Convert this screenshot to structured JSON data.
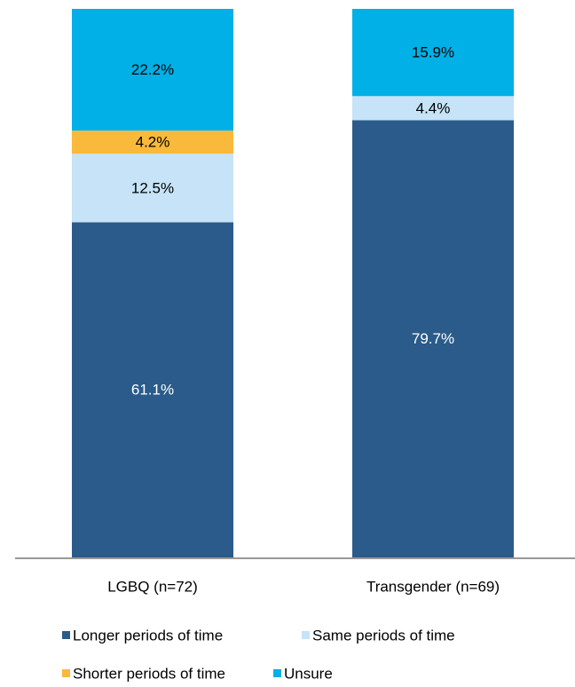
{
  "chart_data": {
    "type": "stacked_bar",
    "categories": [
      "LGBQ (n=72)",
      "Transgender (n=69)"
    ],
    "series": [
      {
        "name": "Longer periods of time",
        "color": "#2a5b8a",
        "values": [
          61.1,
          79.7
        ],
        "value_labels": [
          "61.1%",
          "79.7%"
        ]
      },
      {
        "name": "Same periods of time",
        "color": "#c6e3f7",
        "values": [
          12.5,
          4.4
        ],
        "value_labels": [
          "12.5%",
          "4.4%"
        ]
      },
      {
        "name": "Shorter periods of time",
        "color": "#f9b93a",
        "values": [
          4.2,
          0
        ],
        "value_labels": [
          "4.2%",
          null
        ]
      },
      {
        "name": "Unsure",
        "color": "#00b0e6",
        "values": [
          22.2,
          15.9
        ],
        "value_labels": [
          "22.2%",
          "15.9%"
        ]
      }
    ],
    "ylim": [
      0,
      100
    ],
    "legend": "bottom"
  }
}
